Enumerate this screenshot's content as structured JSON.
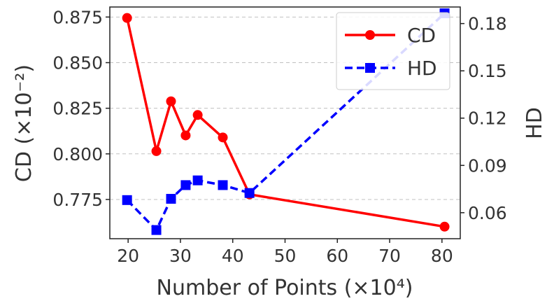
{
  "chart_data": {
    "type": "line",
    "xlabel": "Number of Points (×10⁴)",
    "ylabel_left": "CD (×10⁻²)",
    "ylabel_right": "HD",
    "xlim": [
      16.5,
      83.5
    ],
    "ylim_left": [
      0.7535,
      0.8805
    ],
    "ylim_right": [
      0.0435,
      0.1905
    ],
    "x_ticks": [
      20,
      30,
      40,
      50,
      60,
      70,
      80
    ],
    "x_tick_labels": [
      "20",
      "30",
      "40",
      "50",
      "60",
      "70",
      "80"
    ],
    "y_left_ticks": [
      0.775,
      0.8,
      0.825,
      0.85,
      0.875
    ],
    "y_left_tick_labels": [
      "0.775",
      "0.800",
      "0.825",
      "0.850",
      "0.875"
    ],
    "y_right_ticks": [
      0.06,
      0.09,
      0.12,
      0.15,
      0.18
    ],
    "y_right_tick_labels": [
      "0.06",
      "0.09",
      "0.12",
      "0.15",
      "0.18"
    ],
    "grid": true,
    "legend_position": "top-right",
    "series": [
      {
        "name": "CD",
        "axis": "left",
        "color": "#ff0000",
        "marker": "circle",
        "line_style": "solid",
        "x": [
          19.8,
          25.4,
          28.2,
          31.0,
          33.3,
          38.1,
          43.2,
          80.5
        ],
        "y": [
          0.8745,
          0.8015,
          0.8288,
          0.8101,
          0.8213,
          0.809,
          0.7778,
          0.7601
        ]
      },
      {
        "name": "HD",
        "axis": "right",
        "color": "#0000ff",
        "marker": "square",
        "line_style": "dashed",
        "x": [
          19.8,
          25.4,
          28.2,
          31.0,
          33.3,
          38.1,
          43.2,
          80.5
        ],
        "y": [
          0.068,
          0.049,
          0.0688,
          0.0775,
          0.0805,
          0.0775,
          0.0725,
          0.1865
        ]
      }
    ]
  }
}
